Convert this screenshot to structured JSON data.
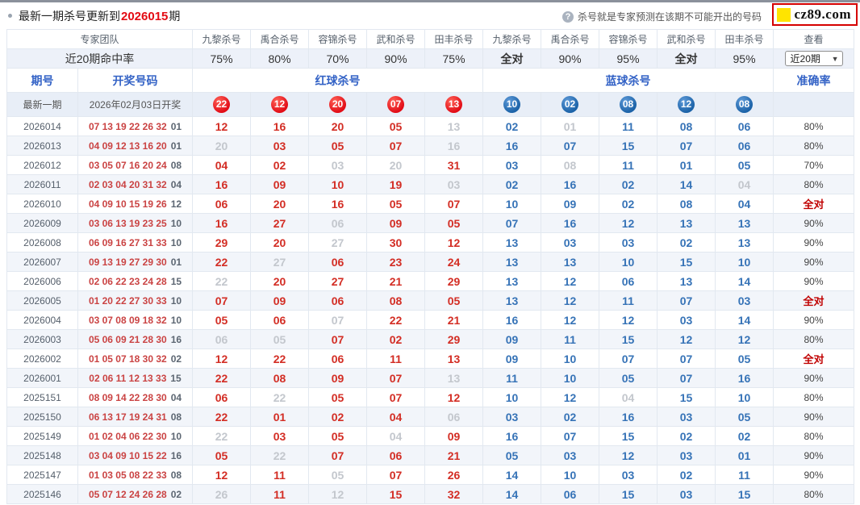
{
  "page": {
    "title_prefix": "最新一期杀号更新到",
    "title_issue": "2026015",
    "title_suffix": "期",
    "help_icon": "?",
    "tooltip": "杀号就是专家预测在该期不可能开出的号码",
    "logo_text": "cz89.com"
  },
  "colors": {
    "accent_red": "#d32d24",
    "accent_blue": "#3673b7",
    "miss_gray": "#c3c7cd",
    "red_ball": "#e20d17",
    "blue_ball": "#1c63a8",
    "logo_border": "#d50000",
    "logo_yellow": "#ffe400"
  },
  "table": {
    "corner_label": "专家团队",
    "rate_label": "近20期命中率",
    "view_label": "查看",
    "range_select": "近20期",
    "caret_icon": "▼",
    "experts": [
      "九黎杀号",
      "禹合杀号",
      "容锦杀号",
      "武和杀号",
      "田丰杀号"
    ],
    "red_rates": [
      "75%",
      "80%",
      "70%",
      "90%",
      "75%"
    ],
    "blue_rates": [
      "全对",
      "90%",
      "95%",
      "全对",
      "95%"
    ],
    "sub": {
      "period": "期号",
      "draw": "开奖号码",
      "red": "红球杀号",
      "blue": "蓝球杀号",
      "acc": "准确率"
    },
    "latest": {
      "label": "最新一期",
      "date": "2026年02月03日开奖",
      "red_balls": [
        "22",
        "12",
        "20",
        "07",
        "13"
      ],
      "blue_balls": [
        "10",
        "02",
        "08",
        "12",
        "08"
      ]
    },
    "rows": [
      {
        "period": "2026014",
        "draw_red": "07 13 19 22 26 32",
        "draw_blue": "01",
        "red": [
          "12",
          "16",
          "20",
          "05",
          "13"
        ],
        "red_miss": [
          4
        ],
        "blue": [
          "02",
          "01",
          "11",
          "08",
          "06"
        ],
        "blue_miss": [
          1
        ],
        "acc": "80%"
      },
      {
        "period": "2026013",
        "draw_red": "04 09 12 13 16 20",
        "draw_blue": "01",
        "red": [
          "20",
          "03",
          "05",
          "07",
          "16"
        ],
        "red_miss": [
          0,
          4
        ],
        "blue": [
          "16",
          "07",
          "15",
          "07",
          "06"
        ],
        "blue_miss": [],
        "acc": "80%"
      },
      {
        "period": "2026012",
        "draw_red": "03 05 07 16 20 24",
        "draw_blue": "08",
        "red": [
          "04",
          "02",
          "03",
          "20",
          "31"
        ],
        "red_miss": [
          2,
          3
        ],
        "blue": [
          "03",
          "08",
          "11",
          "01",
          "05"
        ],
        "blue_miss": [
          1
        ],
        "acc": "70%"
      },
      {
        "period": "2026011",
        "draw_red": "02 03 04 20 31 32",
        "draw_blue": "04",
        "red": [
          "16",
          "09",
          "10",
          "19",
          "03"
        ],
        "red_miss": [
          4
        ],
        "blue": [
          "02",
          "16",
          "02",
          "14",
          "04"
        ],
        "blue_miss": [
          4
        ],
        "acc": "80%"
      },
      {
        "period": "2026010",
        "draw_red": "04 09 10 15 19 26",
        "draw_blue": "12",
        "red": [
          "06",
          "20",
          "16",
          "05",
          "07"
        ],
        "red_miss": [],
        "blue": [
          "10",
          "09",
          "02",
          "08",
          "04"
        ],
        "blue_miss": [],
        "acc": "全对"
      },
      {
        "period": "2026009",
        "draw_red": "03 06 13 19 23 25",
        "draw_blue": "10",
        "red": [
          "16",
          "27",
          "06",
          "09",
          "05"
        ],
        "red_miss": [
          2
        ],
        "blue": [
          "07",
          "16",
          "12",
          "13",
          "13"
        ],
        "blue_miss": [],
        "acc": "90%"
      },
      {
        "period": "2026008",
        "draw_red": "06 09 16 27 31 33",
        "draw_blue": "10",
        "red": [
          "29",
          "20",
          "27",
          "30",
          "12"
        ],
        "red_miss": [
          2
        ],
        "blue": [
          "13",
          "03",
          "03",
          "02",
          "13"
        ],
        "blue_miss": [],
        "acc": "90%"
      },
      {
        "period": "2026007",
        "draw_red": "09 13 19 27 29 30",
        "draw_blue": "01",
        "red": [
          "22",
          "27",
          "06",
          "23",
          "24"
        ],
        "red_miss": [
          1
        ],
        "blue": [
          "13",
          "13",
          "10",
          "15",
          "10"
        ],
        "blue_miss": [],
        "acc": "90%"
      },
      {
        "period": "2026006",
        "draw_red": "02 06 22 23 24 28",
        "draw_blue": "15",
        "red": [
          "22",
          "20",
          "27",
          "21",
          "29"
        ],
        "red_miss": [
          0
        ],
        "blue": [
          "13",
          "12",
          "06",
          "13",
          "14"
        ],
        "blue_miss": [],
        "acc": "90%"
      },
      {
        "period": "2026005",
        "draw_red": "01 20 22 27 30 33",
        "draw_blue": "10",
        "red": [
          "07",
          "09",
          "06",
          "08",
          "05"
        ],
        "red_miss": [],
        "blue": [
          "13",
          "12",
          "11",
          "07",
          "03"
        ],
        "blue_miss": [],
        "acc": "全对"
      },
      {
        "period": "2026004",
        "draw_red": "03 07 08 09 18 32",
        "draw_blue": "10",
        "red": [
          "05",
          "06",
          "07",
          "22",
          "21"
        ],
        "red_miss": [
          2
        ],
        "blue": [
          "16",
          "12",
          "12",
          "03",
          "14"
        ],
        "blue_miss": [],
        "acc": "90%"
      },
      {
        "period": "2026003",
        "draw_red": "05 06 09 21 28 30",
        "draw_blue": "16",
        "red": [
          "06",
          "05",
          "07",
          "02",
          "29"
        ],
        "red_miss": [
          0,
          1
        ],
        "blue": [
          "09",
          "11",
          "15",
          "12",
          "12"
        ],
        "blue_miss": [],
        "acc": "80%"
      },
      {
        "period": "2026002",
        "draw_red": "01 05 07 18 30 32",
        "draw_blue": "02",
        "red": [
          "12",
          "22",
          "06",
          "11",
          "13"
        ],
        "red_miss": [],
        "blue": [
          "09",
          "10",
          "07",
          "07",
          "05"
        ],
        "blue_miss": [],
        "acc": "全对"
      },
      {
        "period": "2026001",
        "draw_red": "02 06 11 12 13 33",
        "draw_blue": "15",
        "red": [
          "22",
          "08",
          "09",
          "07",
          "13"
        ],
        "red_miss": [
          4
        ],
        "blue": [
          "11",
          "10",
          "05",
          "07",
          "16"
        ],
        "blue_miss": [],
        "acc": "90%"
      },
      {
        "period": "2025151",
        "draw_red": "08 09 14 22 28 30",
        "draw_blue": "04",
        "red": [
          "06",
          "22",
          "05",
          "07",
          "12"
        ],
        "red_miss": [
          1
        ],
        "blue": [
          "10",
          "12",
          "04",
          "15",
          "10"
        ],
        "blue_miss": [
          2
        ],
        "acc": "80%"
      },
      {
        "period": "2025150",
        "draw_red": "06 13 17 19 24 31",
        "draw_blue": "08",
        "red": [
          "22",
          "01",
          "02",
          "04",
          "06"
        ],
        "red_miss": [
          4
        ],
        "blue": [
          "03",
          "02",
          "16",
          "03",
          "05"
        ],
        "blue_miss": [],
        "acc": "90%"
      },
      {
        "period": "2025149",
        "draw_red": "01 02 04 06 22 30",
        "draw_blue": "10",
        "red": [
          "22",
          "03",
          "05",
          "04",
          "09"
        ],
        "red_miss": [
          0,
          3
        ],
        "blue": [
          "16",
          "07",
          "15",
          "02",
          "02"
        ],
        "blue_miss": [],
        "acc": "80%"
      },
      {
        "period": "2025148",
        "draw_red": "03 04 09 10 15 22",
        "draw_blue": "16",
        "red": [
          "05",
          "22",
          "07",
          "06",
          "21"
        ],
        "red_miss": [
          1
        ],
        "blue": [
          "05",
          "03",
          "12",
          "03",
          "01"
        ],
        "blue_miss": [],
        "acc": "90%"
      },
      {
        "period": "2025147",
        "draw_red": "01 03 05 08 22 33",
        "draw_blue": "08",
        "red": [
          "12",
          "11",
          "05",
          "07",
          "26"
        ],
        "red_miss": [
          2
        ],
        "blue": [
          "14",
          "10",
          "03",
          "02",
          "11"
        ],
        "blue_miss": [],
        "acc": "90%"
      },
      {
        "period": "2025146",
        "draw_red": "05 07 12 24 26 28",
        "draw_blue": "02",
        "red": [
          "26",
          "11",
          "12",
          "15",
          "32"
        ],
        "red_miss": [
          0,
          2
        ],
        "blue": [
          "14",
          "06",
          "15",
          "03",
          "15"
        ],
        "blue_miss": [],
        "acc": "80%"
      }
    ]
  }
}
